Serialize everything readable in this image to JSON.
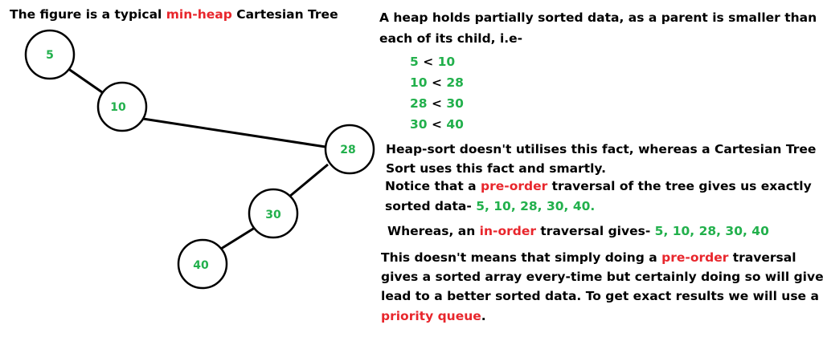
{
  "title": {
    "prefix": "The figure is a typical ",
    "highlight": "min-heap",
    "suffix": "  Cartesian Tree"
  },
  "tree": {
    "nodes": [
      {
        "value": "5"
      },
      {
        "value": "10"
      },
      {
        "value": "28"
      },
      {
        "value": "30"
      },
      {
        "value": "40"
      }
    ],
    "colors": {
      "label": "#22b04c",
      "stroke": "#000000",
      "highlight": "#e8262c"
    }
  },
  "explanation": {
    "intro_line1": "A heap holds partially sorted data, as a parent is smaller than",
    "intro_line2": "each of its child, i.e-",
    "comparisons": [
      {
        "left": "5",
        "op": " < ",
        "right": "10"
      },
      {
        "left": "10",
        "op": " < ",
        "right": "28"
      },
      {
        "left": "28",
        "op": " < ",
        "right": "30"
      },
      {
        "left": "30",
        "op": " < ",
        "right": "40"
      }
    ],
    "heapsort_line1": "Heap-sort doesn't utilises this fact, whereas a Cartesian Tree",
    "heapsort_line2": "Sort uses this fact and smartly.",
    "preorder_prefix": "Notice that a ",
    "preorder_highlight": "pre-order",
    "preorder_suffix": " traversal of the tree gives us exactly",
    "preorder_line2_prefix": "sorted data- ",
    "preorder_result": "5, 10, 28, 30, 40.",
    "inorder_prefix": "Whereas, an ",
    "inorder_highlight": "in-order",
    "inorder_middle": " traversal gives- ",
    "inorder_result": "5, 10, 28, 30, 40",
    "final_line1_prefix": "This doesn't means that simply doing a  ",
    "final_line1_highlight": "pre-order",
    "final_line1_suffix": " traversal",
    "final_line2": "gives a sorted array every-time but certainly doing so will give",
    "final_line3": "lead to a better sorted data. To get exact results we will use a",
    "final_line4_highlight": "priority queue",
    "final_line4_suffix": "."
  }
}
